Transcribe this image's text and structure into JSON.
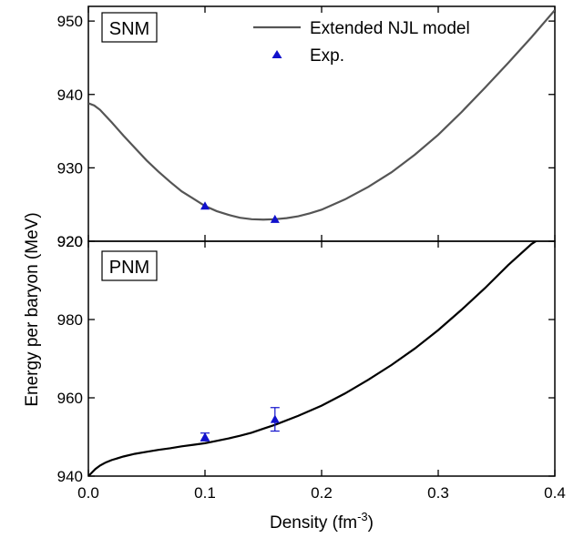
{
  "chart_data": [
    {
      "panel": "top",
      "type": "line",
      "tag": "SNM",
      "x_range": [
        0.0,
        0.4
      ],
      "ylim": [
        920,
        952
      ],
      "y_ticks": [
        920,
        930,
        940,
        950
      ],
      "grid": false,
      "legend": {
        "position": "top-right",
        "entries": [
          {
            "label": "Extended NJL model",
            "kind": "line",
            "color": "#555555"
          },
          {
            "label": "Exp.",
            "kind": "marker",
            "color": "#1010CC"
          }
        ]
      },
      "series": [
        {
          "name": "Extended NJL model",
          "color": "#555555",
          "x": [
            0.0,
            0.005,
            0.01,
            0.02,
            0.03,
            0.04,
            0.05,
            0.06,
            0.07,
            0.08,
            0.09,
            0.1,
            0.11,
            0.12,
            0.13,
            0.14,
            0.15,
            0.16,
            0.17,
            0.18,
            0.19,
            0.2,
            0.22,
            0.24,
            0.26,
            0.28,
            0.3,
            0.32,
            0.34,
            0.36,
            0.38,
            0.4
          ],
          "y": [
            938.8,
            938.5,
            937.9,
            936.2,
            934.4,
            932.7,
            931.0,
            929.5,
            928.1,
            926.8,
            925.8,
            924.8,
            924.1,
            923.6,
            923.2,
            923.0,
            922.95,
            923.0,
            923.15,
            923.4,
            923.8,
            924.3,
            925.7,
            927.4,
            929.4,
            931.8,
            934.5,
            937.6,
            940.9,
            944.3,
            947.8,
            951.5
          ]
        },
        {
          "name": "Exp.",
          "color": "#1010CC",
          "type": "scatter",
          "x": [
            0.1,
            0.16
          ],
          "y": [
            924.8,
            923.0
          ],
          "err": [
            0.2,
            0.2
          ]
        }
      ]
    },
    {
      "panel": "bottom",
      "type": "line",
      "tag": "PNM",
      "x_range": [
        0.0,
        0.4
      ],
      "ylim": [
        940,
        1000
      ],
      "y_ticks": [
        940,
        960,
        980
      ],
      "top_tick_label": "920",
      "grid": false,
      "series": [
        {
          "name": "Extended NJL model",
          "color": "#000000",
          "x": [
            0.0,
            0.003,
            0.006,
            0.01,
            0.015,
            0.02,
            0.03,
            0.04,
            0.05,
            0.06,
            0.07,
            0.08,
            0.09,
            0.1,
            0.11,
            0.12,
            0.13,
            0.14,
            0.15,
            0.16,
            0.18,
            0.2,
            0.22,
            0.24,
            0.26,
            0.28,
            0.3,
            0.32,
            0.34,
            0.36,
            0.38,
            0.389
          ],
          "y": [
            940.0,
            940.9,
            941.8,
            942.7,
            943.5,
            944.1,
            945.0,
            945.7,
            946.2,
            946.7,
            947.1,
            947.6,
            948.0,
            948.4,
            949.0,
            949.6,
            950.3,
            951.1,
            952.1,
            953.1,
            955.4,
            958.0,
            961.1,
            964.6,
            968.4,
            972.6,
            977.3,
            982.5,
            988.0,
            993.9,
            999.3,
            1001.0
          ]
        },
        {
          "name": "Exp.",
          "color": "#1010CC",
          "type": "scatter",
          "x": [
            0.1,
            0.16
          ],
          "y": [
            950.0,
            954.5
          ],
          "err": [
            1.0,
            3.0
          ]
        }
      ]
    }
  ],
  "axes": {
    "xlabel": "Density (fm",
    "xlabel_sup": "-3",
    "xlabel_close": ")",
    "ylabel": "Energy per baryon (MeV)",
    "x_ticks": [
      0.0,
      0.1,
      0.2,
      0.3,
      0.4
    ],
    "x_tick_labels": [
      "0.0",
      "0.1",
      "0.2",
      "0.3",
      "0.4"
    ]
  }
}
